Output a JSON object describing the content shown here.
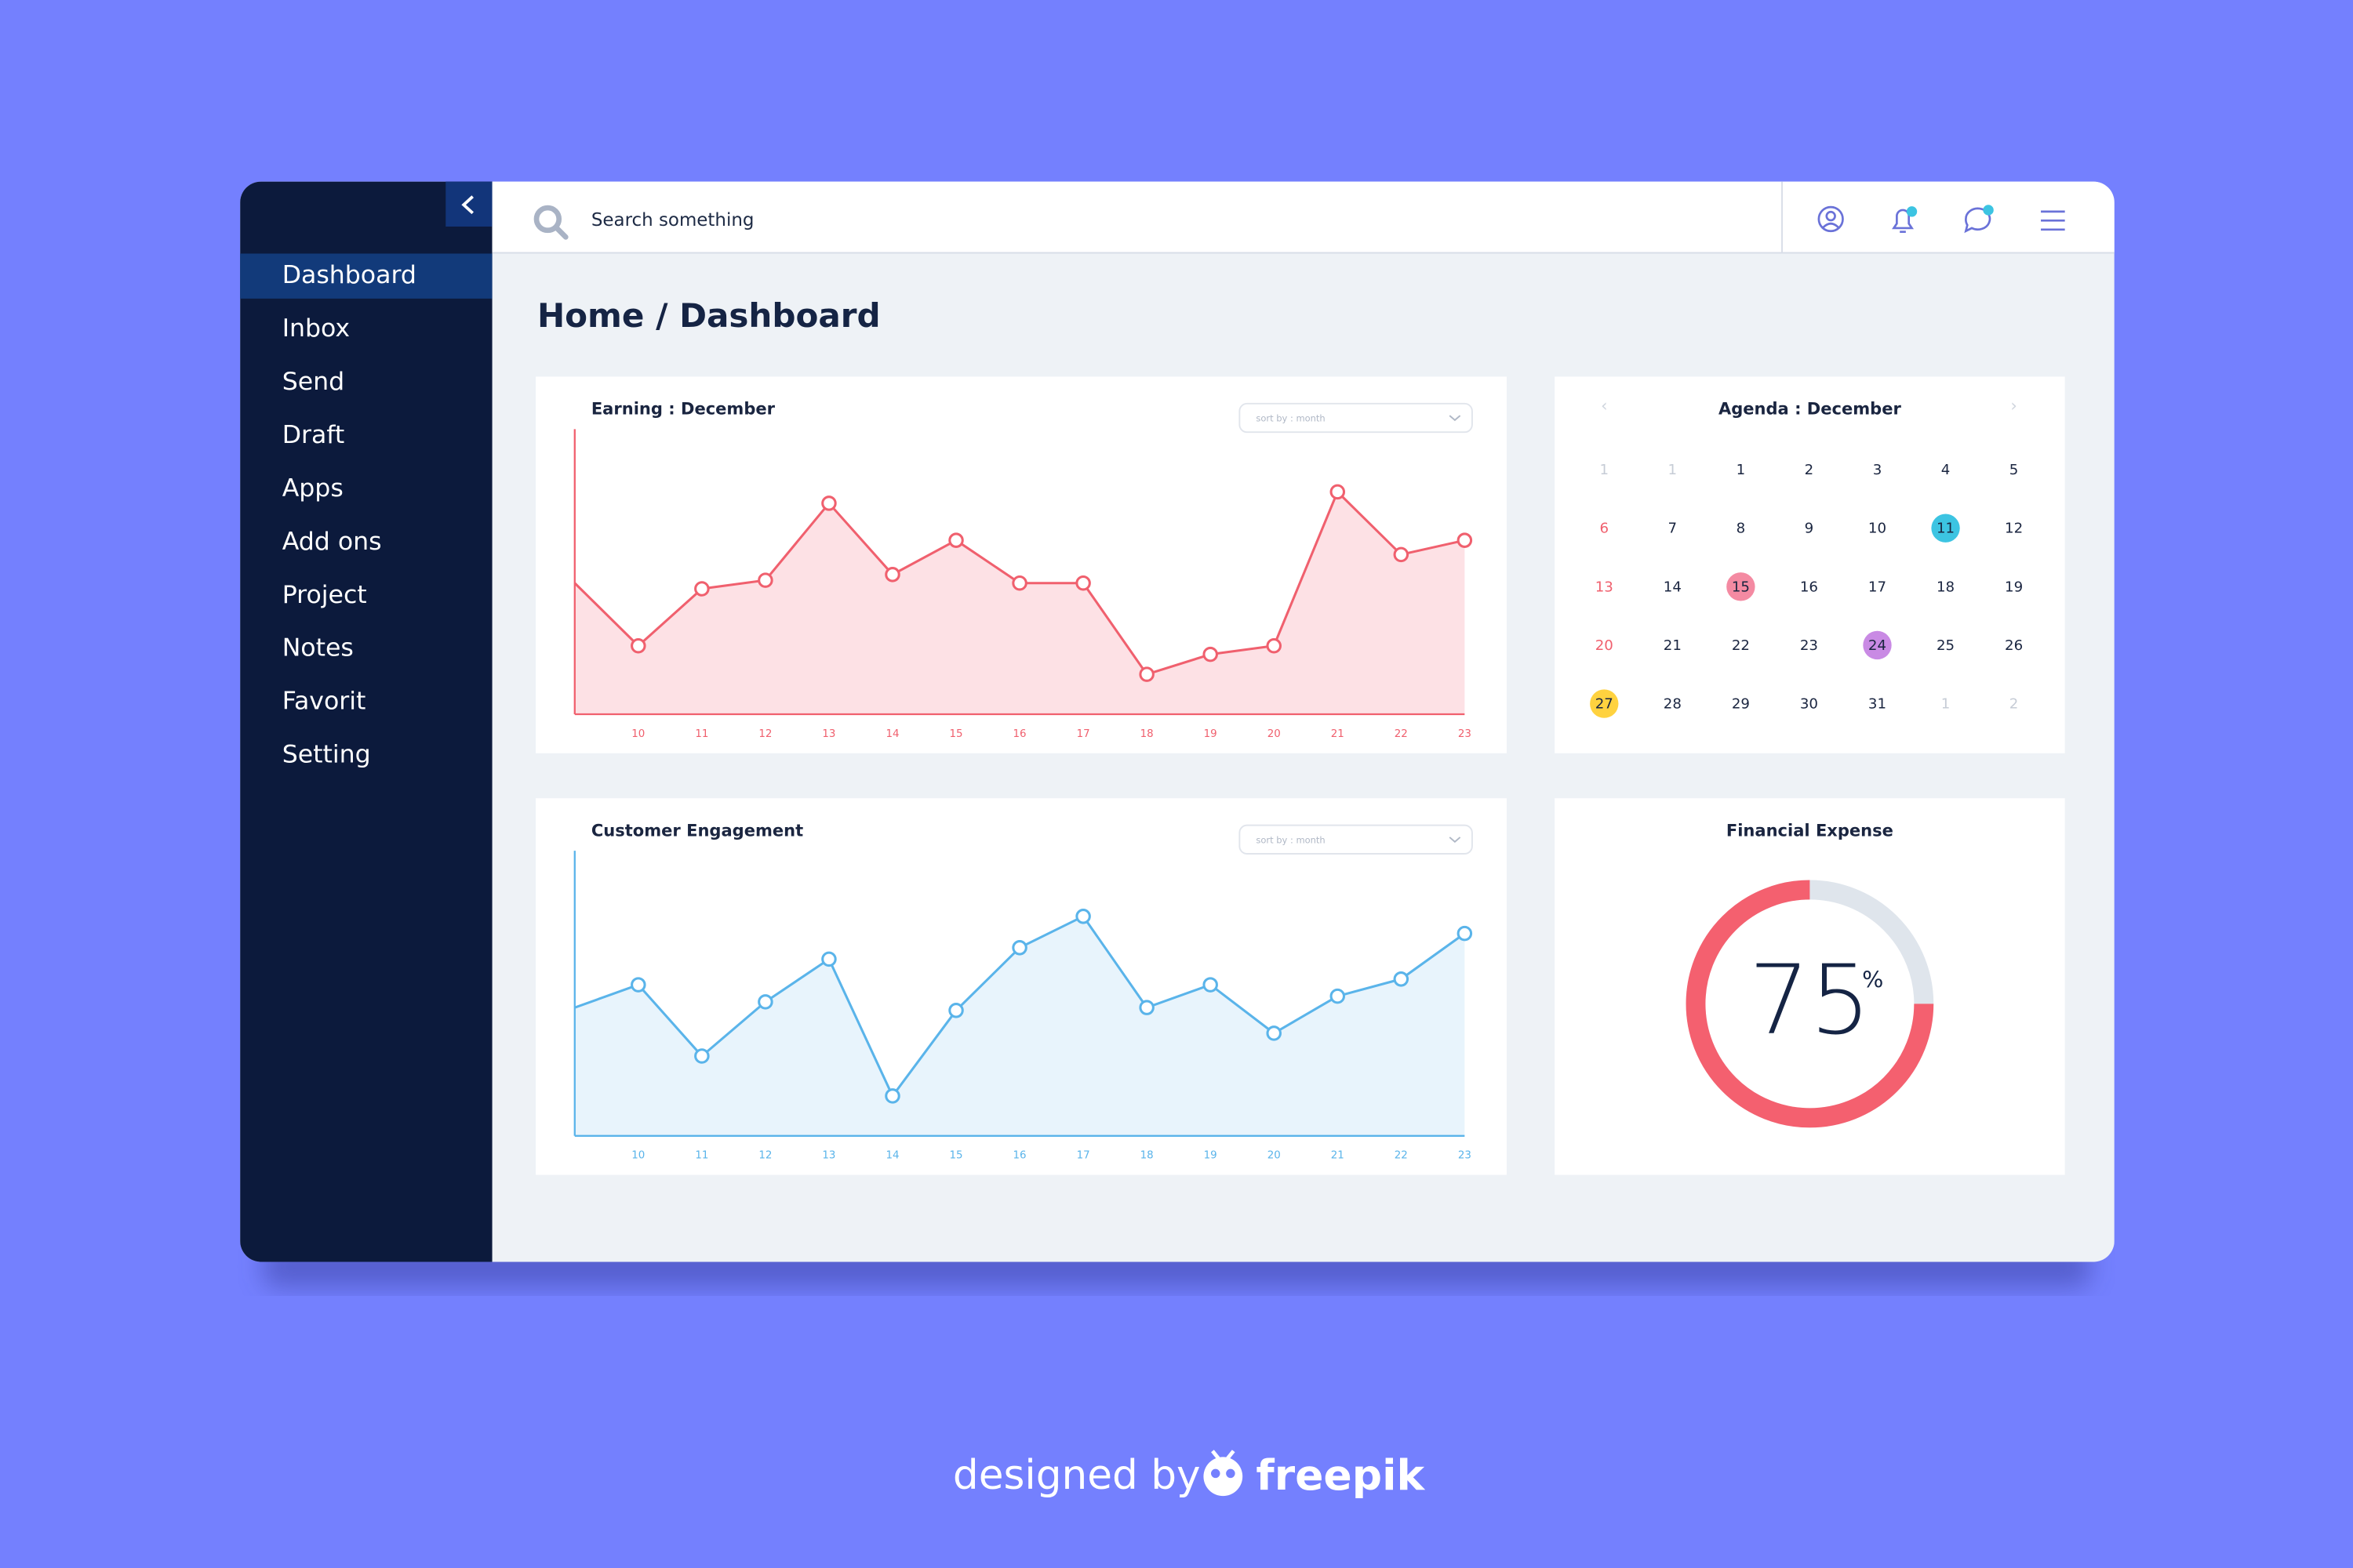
{
  "sidebar": {
    "items": [
      "Dashboard",
      "Inbox",
      "Send",
      "Draft",
      "Apps",
      "Add ons",
      "Project",
      "Notes",
      "Favorit",
      "Setting"
    ],
    "active": 0
  },
  "header": {
    "search_placeholder": "Search something"
  },
  "page_title": "Home / Dashboard",
  "chart_data": [
    {
      "type": "line",
      "title": "Earning : December",
      "sort_label": "sort by : month",
      "categories": [
        null,
        "10",
        "11",
        "12",
        "13",
        "14",
        "15",
        "16",
        "17",
        "18",
        "19",
        "20",
        "21",
        "22",
        "23"
      ],
      "series": [
        {
          "color": "#f0606e",
          "fill": "#fde1e5",
          "values": [
            46,
            24,
            44,
            47,
            74,
            49,
            61,
            46,
            46,
            14,
            21,
            24,
            78,
            56,
            61
          ]
        }
      ],
      "ylim": [
        0,
        100
      ]
    },
    {
      "type": "line",
      "title": "Customer Engagement",
      "sort_label": "sort by : month",
      "categories": [
        null,
        "10",
        "11",
        "12",
        "13",
        "14",
        "15",
        "16",
        "17",
        "18",
        "19",
        "20",
        "21",
        "22",
        "23"
      ],
      "series": [
        {
          "color": "#5ab4ea",
          "fill": "#e8f4fc",
          "values": [
            45,
            53,
            28,
            47,
            62,
            14,
            44,
            66,
            77,
            45,
            53,
            36,
            49,
            55,
            71
          ]
        }
      ],
      "ylim": [
        0,
        100
      ]
    },
    {
      "type": "donut",
      "title": "Financial Expense",
      "value": 75,
      "unit": "%",
      "color": "#f4606f",
      "track_color": "#dfe5ec"
    }
  ],
  "agenda": {
    "title": "Agenda : December",
    "weeks": [
      [
        {
          "d": "1",
          "muted": true
        },
        {
          "d": "1",
          "muted": true
        },
        "1",
        "2",
        "3",
        "4",
        "5"
      ],
      [
        "6",
        "7",
        "8",
        "9",
        "10",
        {
          "d": "11",
          "color": "#3cc4e2"
        },
        "12"
      ],
      [
        "13",
        "14",
        {
          "d": "15",
          "color": "#f48aa2"
        },
        "16",
        "17",
        "18",
        "19"
      ],
      [
        "20",
        "21",
        "22",
        "23",
        {
          "d": "24",
          "color": "#c98ae4"
        },
        "25",
        "26"
      ],
      [
        {
          "d": "27",
          "color": "#ffd23f"
        },
        "28",
        "29",
        "30",
        "31",
        {
          "d": "1",
          "muted": true
        },
        {
          "d": "2",
          "muted": true
        }
      ]
    ]
  },
  "footer": {
    "prefix": "designed by",
    "brand": "freepik"
  }
}
